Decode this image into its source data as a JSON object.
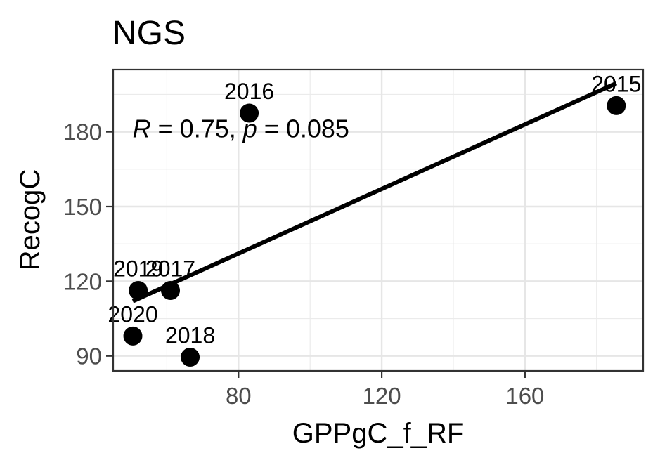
{
  "chart_data": {
    "type": "scatter",
    "title": "NGS",
    "xlabel": "GPPgC_f_RF",
    "ylabel": "RecogC",
    "xlim": [
      45,
      193
    ],
    "ylim": [
      84,
      205
    ],
    "x_ticks": [
      80,
      120,
      160
    ],
    "x_tick_labels": [
      "80",
      "120",
      "160"
    ],
    "x_minor_ticks": [
      60,
      100,
      140,
      180
    ],
    "y_ticks": [
      90,
      120,
      150,
      180
    ],
    "y_tick_labels": [
      "90",
      "120",
      "150",
      "180"
    ],
    "y_minor_ticks": [
      105,
      135,
      165,
      195
    ],
    "grid": true,
    "legend": "none",
    "point_color": "#000000",
    "points": [
      {
        "label": "2015",
        "x": 185.5,
        "y": 190.5
      },
      {
        "label": "2016",
        "x": 83.0,
        "y": 187.5
      },
      {
        "label": "2017",
        "x": 61.0,
        "y": 116.3
      },
      {
        "label": "2018",
        "x": 66.5,
        "y": 89.5
      },
      {
        "label": "2019",
        "x": 52.0,
        "y": 116.3
      },
      {
        "label": "2020",
        "x": 50.5,
        "y": 98.0
      }
    ],
    "fit_line": {
      "x": [
        50.5,
        185.5
      ],
      "y": [
        112.0,
        199.5
      ]
    },
    "annotation": {
      "r_symbol": "R",
      "r_text": " = 0.75, ",
      "p_symbol": "p",
      "p_text": " = 0.085",
      "x": 52,
      "y": 180
    }
  }
}
